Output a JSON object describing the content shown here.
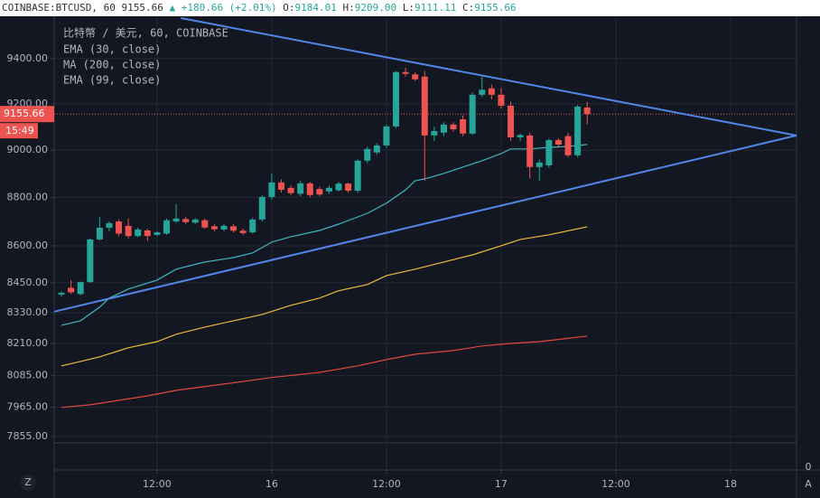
{
  "chart_data": {
    "type": "candlestick",
    "header": {
      "symbol": "COINBASE:BTCUSD, 60",
      "last": "9155.66",
      "change": "+180.66 (+2.01%)",
      "ohlc": [
        {
          "label": "O:",
          "value": "9184.01"
        },
        {
          "label": "H:",
          "value": "9209.00"
        },
        {
          "label": "L:",
          "value": "9111.11"
        },
        {
          "label": "C:",
          "value": "9155.66"
        }
      ]
    },
    "legend_title": "比特幣 / 美元, 60, COINBASE",
    "x": [
      2,
      3,
      4,
      5,
      6,
      7,
      8,
      9,
      10,
      11,
      12,
      13,
      14,
      15,
      16,
      17,
      18,
      19,
      20,
      21,
      22,
      23,
      24,
      25,
      26,
      27,
      28,
      29,
      30,
      31,
      32,
      33,
      34,
      35,
      36,
      37,
      38,
      39,
      40,
      41,
      42,
      43,
      44,
      45,
      46,
      47,
      48,
      49,
      50,
      51,
      52,
      53,
      54,
      55,
      56,
      57
    ],
    "open": [
      8403,
      8430,
      8405,
      8453,
      8626,
      8674,
      8700,
      8682,
      8640,
      8663,
      8645,
      8650,
      8700,
      8710,
      8695,
      8705,
      8680,
      8667,
      8680,
      8662,
      8655,
      8708,
      8802,
      8863,
      8840,
      8815,
      8859,
      8835,
      8825,
      8830,
      8858,
      8828,
      8955,
      8990,
      9020,
      9102,
      9340,
      9330,
      9320,
      9063,
      9075,
      9110,
      9133,
      9071,
      9240,
      9268,
      9240,
      9192,
      9055,
      9063,
      8928,
      8935,
      9043,
      9060,
      8978,
      9184.01
    ],
    "high": [
      8415,
      8461,
      8455,
      8630,
      8719,
      8700,
      8708,
      8712,
      8675,
      8670,
      8660,
      8712,
      8772,
      8720,
      8715,
      8712,
      8690,
      8690,
      8690,
      8670,
      8715,
      8810,
      8900,
      8875,
      8850,
      8870,
      8865,
      8845,
      8850,
      8865,
      8862,
      8960,
      9015,
      9030,
      9110,
      9345,
      9360,
      9340,
      9345,
      9100,
      9120,
      9120,
      9150,
      9250,
      9320,
      9285,
      9270,
      9210,
      9070,
      9075,
      8960,
      9050,
      9050,
      9075,
      9195,
      9209
    ],
    "low": [
      8395,
      8405,
      8400,
      8450,
      8620,
      8660,
      8640,
      8630,
      8635,
      8620,
      8640,
      8645,
      8695,
      8690,
      8690,
      8670,
      8660,
      8660,
      8655,
      8645,
      8650,
      8700,
      8790,
      8820,
      8810,
      8805,
      8800,
      8805,
      8815,
      8825,
      8820,
      8820,
      8945,
      8980,
      9010,
      9095,
      9320,
      9300,
      8870,
      9040,
      9060,
      9080,
      9060,
      9065,
      9230,
      9220,
      9180,
      9040,
      9040,
      8880,
      8870,
      8925,
      9010,
      8970,
      8970,
      9111.11
    ],
    "close": [
      8410,
      8412,
      8453,
      8626,
      8674,
      8693,
      8650,
      8640,
      8667,
      8640,
      8655,
      8705,
      8712,
      8697,
      8708,
      8675,
      8668,
      8682,
      8662,
      8652,
      8708,
      8802,
      8863,
      8832,
      8818,
      8859,
      8810,
      8812,
      8840,
      8858,
      8828,
      8955,
      9005,
      9020,
      9102,
      9340,
      9332,
      9308,
      9063,
      9082,
      9110,
      9090,
      9071,
      9240,
      9262,
      9240,
      9192,
      9055,
      9065,
      8928,
      8947,
      9043,
      9024,
      8978,
      9188,
      9155.66
    ],
    "up_color": "#26a69a",
    "down_color": "#ef5350",
    "lines": [
      {
        "name": "EMA (30, close)",
        "color": "#3fb6c2",
        "x": [
          2,
          4,
          6,
          7,
          9,
          12,
          14,
          17,
          20,
          22,
          24,
          26,
          29,
          31,
          34,
          36,
          38,
          39,
          40,
          42,
          44,
          46,
          48,
          49,
          51,
          53,
          55,
          57
        ],
        "values": [
          8281,
          8299,
          8353,
          8389,
          8425,
          8461,
          8505,
          8534,
          8552,
          8571,
          8615,
          8637,
          8663,
          8689,
          8734,
          8776,
          8832,
          8870,
          8878,
          8901,
          8928,
          8955,
          8985,
          9005,
          9005,
          9012,
          9016,
          9024
        ]
      },
      {
        "name": "MA (200, close)",
        "color": "#e0483e",
        "x": [
          2,
          5,
          8,
          11,
          14,
          19,
          24,
          29,
          33,
          36,
          39,
          43,
          46,
          49,
          52,
          57
        ],
        "values": [
          7964,
          7974,
          7991,
          8008,
          8029,
          8053,
          8078,
          8098,
          8123,
          8147,
          8168,
          8182,
          8200,
          8210,
          8217,
          8239
        ]
      },
      {
        "name": "EMA (99, close)",
        "color": "#f0b93a",
        "x": [
          2,
          4,
          6,
          9,
          12,
          14,
          17,
          20,
          23,
          26,
          29,
          31,
          34,
          36,
          39,
          42,
          45,
          48,
          50,
          53,
          57
        ],
        "values": [
          8123,
          8140,
          8158,
          8193,
          8217,
          8246,
          8274,
          8299,
          8324,
          8360,
          8389,
          8418,
          8443,
          8479,
          8505,
          8534,
          8563,
          8600,
          8626,
          8645,
          8678
        ]
      }
    ],
    "trendlines": [
      {
        "color": "#4f86e8",
        "x": [
          14.5,
          78.9
        ],
        "values": [
          9583,
          9063
        ]
      },
      {
        "color": "#4f86e8",
        "x": [
          1.24,
          78.9
        ],
        "values": [
          8335,
          9063
        ]
      }
    ],
    "last_price": 9155.66,
    "countdown": "15:49",
    "pane2_label": "0",
    "log_scale": true,
    "grid": true,
    "xlim": [
      1.24,
      78.9
    ],
    "xticks": [
      {
        "value": 12,
        "label": "12:00"
      },
      {
        "value": 24,
        "label": "16"
      },
      {
        "value": 36,
        "label": "12:00"
      },
      {
        "value": 48,
        "label": "17"
      },
      {
        "value": 60,
        "label": "12:00"
      },
      {
        "value": 72,
        "label": "18"
      }
    ],
    "ylim": [
      7831,
      9583
    ],
    "yticks": [
      {
        "value": 9400,
        "label": "9400.00"
      },
      {
        "value": 9200,
        "label": "9200.00"
      },
      {
        "value": 9000,
        "label": "9000.00"
      },
      {
        "value": 8800,
        "label": "8800.00"
      },
      {
        "value": 8600,
        "label": "8600.00"
      },
      {
        "value": 8450,
        "label": "8450.00"
      },
      {
        "value": 8330,
        "label": "8330.00"
      },
      {
        "value": 8210,
        "label": "8210.00"
      },
      {
        "value": 8085,
        "label": "8085.00"
      },
      {
        "value": 7965,
        "label": "7965.00"
      },
      {
        "value": 7855,
        "label": "7855.00"
      }
    ]
  }
}
